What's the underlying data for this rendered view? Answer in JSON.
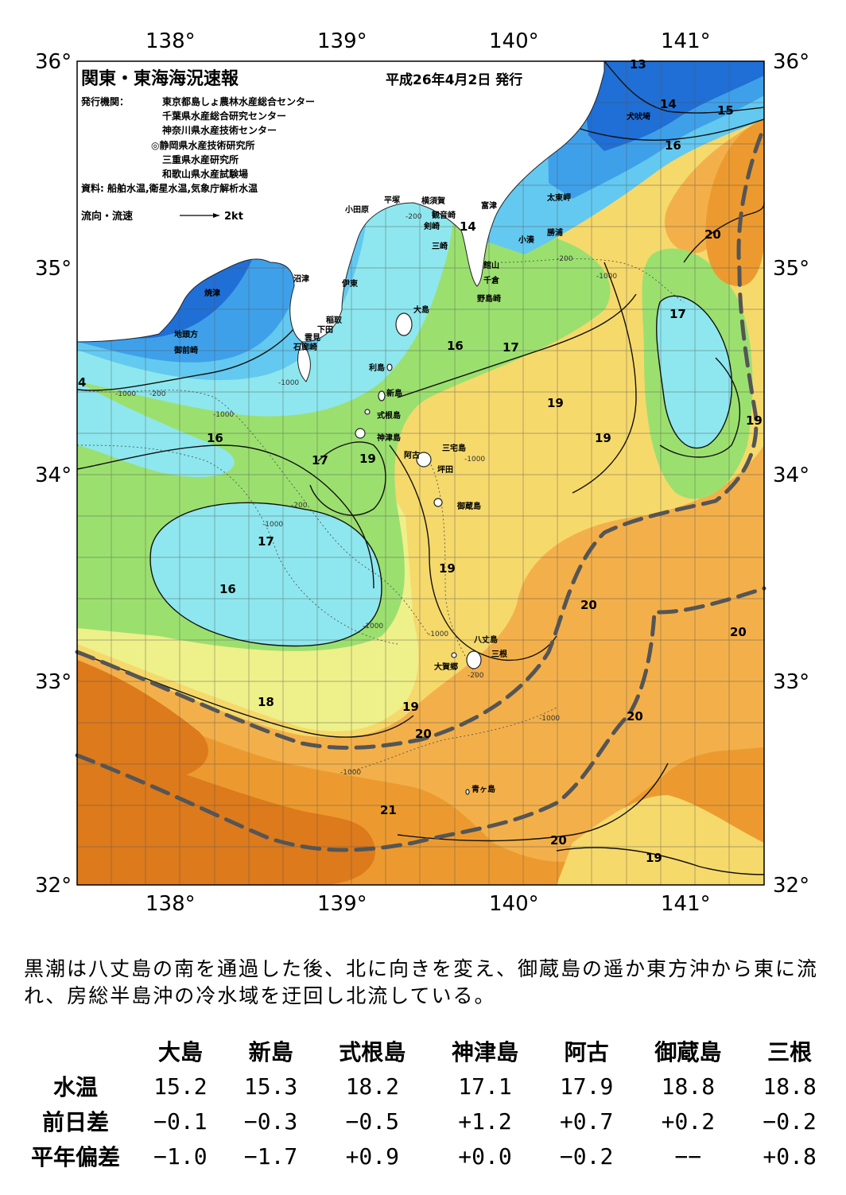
{
  "header": {
    "title": "関東・東海海況速報",
    "issue_date": "平成26年4月2日 発行",
    "publisher_label": "発行機関：",
    "publishers": [
      "東京都島しょ農林水産総合センター",
      "千葉県水産総合研究センター",
      "神奈川県水産技術センター",
      "◎静岡県水産技術研究所",
      "三重県水産研究所",
      "和歌山県水産試験場"
    ],
    "source": "資料: 船舶水温,衛星水温,気象庁解析水温",
    "current_legend_label": "流向・流速",
    "current_legend_value": "2kt"
  },
  "axes": {
    "lon_labels": [
      "138°",
      "139°",
      "140°",
      "141°"
    ],
    "lat_labels": [
      "36°",
      "35°",
      "34°",
      "33°",
      "32°"
    ]
  },
  "places": [
    "犬吠埼",
    "太東岬",
    "勝浦",
    "小湊",
    "富津",
    "館山",
    "千倉",
    "野島崎",
    "観音崎",
    "横須賀",
    "剣崎",
    "三崎",
    "平塚",
    "小田原",
    "沼津",
    "伊東",
    "焼津",
    "稲取",
    "下田",
    "雲見",
    "石廊崎",
    "地頭方",
    "御前崎",
    "大島",
    "利島",
    "新島",
    "式根島",
    "神津島",
    "三宅島",
    "阿古",
    "坪田",
    "御蔵島",
    "八丈島",
    "三根",
    "大賀郷",
    "青ヶ島"
  ],
  "isotherm_labels": [
    "13",
    "14",
    "15",
    "16",
    "14",
    "20",
    "17",
    "16",
    "17",
    "19",
    "19",
    "19",
    "16",
    "17",
    "19",
    "17",
    "16",
    "19",
    "20",
    "20",
    "18",
    "19",
    "20",
    "20",
    "21",
    "20",
    "19",
    "4"
  ],
  "depth_labels": [
    "-200",
    "-1000",
    "-200",
    "-1000",
    "-1000",
    "-200",
    "-1000",
    "-200",
    "-1000",
    "-1000",
    "-1000",
    "-200",
    "-1000",
    "-1000",
    "-1000"
  ],
  "colors": {
    "t13": "#1f6fd6",
    "t14": "#3fa0ea",
    "t15": "#63c9f0",
    "t16": "#8ee7ee",
    "t17": "#9be06f",
    "t18": "#eef08a",
    "t19": "#f6d96b",
    "t20": "#f3b04a",
    "t21": "#ec9a2f",
    "t22": "#dc7a1c",
    "kuroshio_axis": "#555555",
    "land": "#ffffff"
  },
  "summary": "黒潮は八丈島の南を通過した後、北に向きを変え、御蔵島の遥か東方沖から東に流れ、房総半島沖の冷水域を迂回し北流している。",
  "table": {
    "columns": [
      "大島",
      "新島",
      "式根島",
      "神津島",
      "阿古",
      "御蔵島",
      "三根"
    ],
    "rows": [
      {
        "label": "水温",
        "values": [
          "15.2",
          "15.3",
          "18.2",
          "17.1",
          "17.9",
          "18.8",
          "18.8"
        ]
      },
      {
        "label": "前日差",
        "values": [
          "−0.1",
          "−0.3",
          "−0.5",
          "+1.2",
          "+0.7",
          "+0.2",
          "−0.2"
        ]
      },
      {
        "label": "平年偏差",
        "values": [
          "−1.0",
          "−1.7",
          "+0.9",
          "+0.0",
          "−0.2",
          "−−",
          "+0.8"
        ]
      }
    ]
  }
}
